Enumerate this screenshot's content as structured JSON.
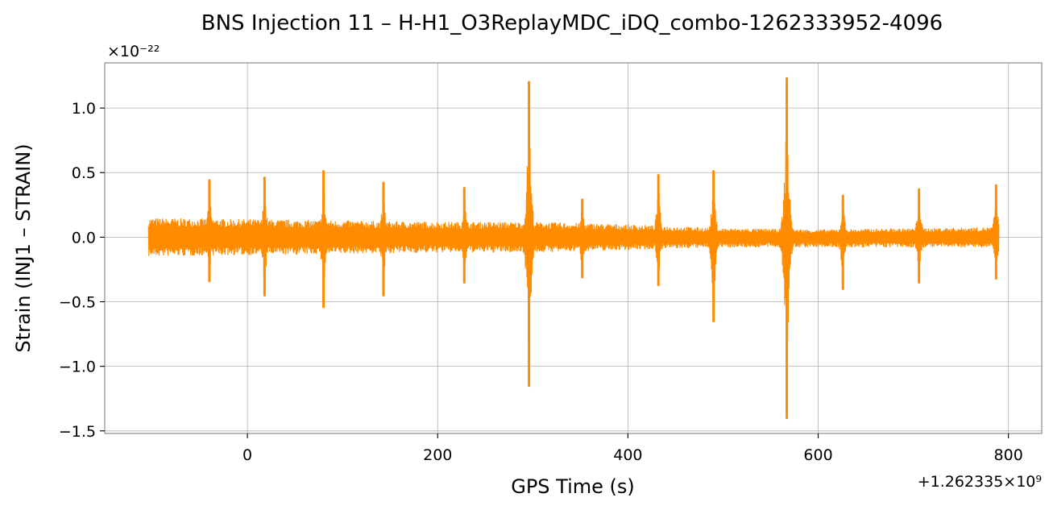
{
  "chart_data": {
    "type": "line",
    "title": "BNS Injection 11 – H-H1_O3ReplayMDC_iDQ_combo-1262333952-4096",
    "xlabel": "GPS Time (s)",
    "ylabel": "Strain (INJ1 – STRAIN)",
    "y_scale_label": "×10⁻²²",
    "x_offset_label": "+1.262335×10⁹",
    "xlim": [
      -150,
      835
    ],
    "ylim": [
      -1.52,
      1.35
    ],
    "x_ticks": [
      0,
      200,
      400,
      600,
      800
    ],
    "x_tick_labels": [
      "0",
      "200",
      "400",
      "600",
      "800"
    ],
    "y_ticks": [
      1.0,
      0.5,
      0.0,
      -0.5,
      -1.0,
      -1.5
    ],
    "y_tick_labels": [
      "1.0",
      "0.5",
      "0.0",
      "−0.5",
      "−1.0",
      "−1.5"
    ],
    "grid": true,
    "line_color": "#ff8c00",
    "series": [
      {
        "noise_envelope": {
          "x": [
            -104,
            0,
            100,
            200,
            300,
            400,
            500,
            600,
            700,
            790
          ],
          "upper": [
            0.15,
            0.14,
            0.13,
            0.12,
            0.12,
            0.1,
            0.07,
            0.06,
            0.07,
            0.08
          ],
          "lower": [
            -0.15,
            -0.14,
            -0.13,
            -0.12,
            -0.12,
            -0.1,
            -0.08,
            -0.08,
            -0.08,
            -0.08
          ]
        },
        "glitches": [
          {
            "x": -40,
            "max": 0.44,
            "min": -0.34
          },
          {
            "x": 18,
            "max": 0.46,
            "min": -0.45
          },
          {
            "x": 80,
            "max": 0.51,
            "min": -0.54
          },
          {
            "x": 143,
            "max": 0.42,
            "min": -0.45
          },
          {
            "x": 228,
            "max": 0.38,
            "min": -0.35
          },
          {
            "x": 296,
            "max": 1.2,
            "min": -1.15
          },
          {
            "x": 352,
            "max": 0.29,
            "min": -0.31
          },
          {
            "x": 432,
            "max": 0.48,
            "min": -0.37
          },
          {
            "x": 490,
            "max": 0.51,
            "min": -0.65
          },
          {
            "x": 567,
            "max": 1.23,
            "min": -1.4
          },
          {
            "x": 626,
            "max": 0.32,
            "min": -0.4
          },
          {
            "x": 706,
            "max": 0.37,
            "min": -0.35
          },
          {
            "x": 787,
            "max": 0.4,
            "min": -0.32
          }
        ]
      }
    ]
  }
}
